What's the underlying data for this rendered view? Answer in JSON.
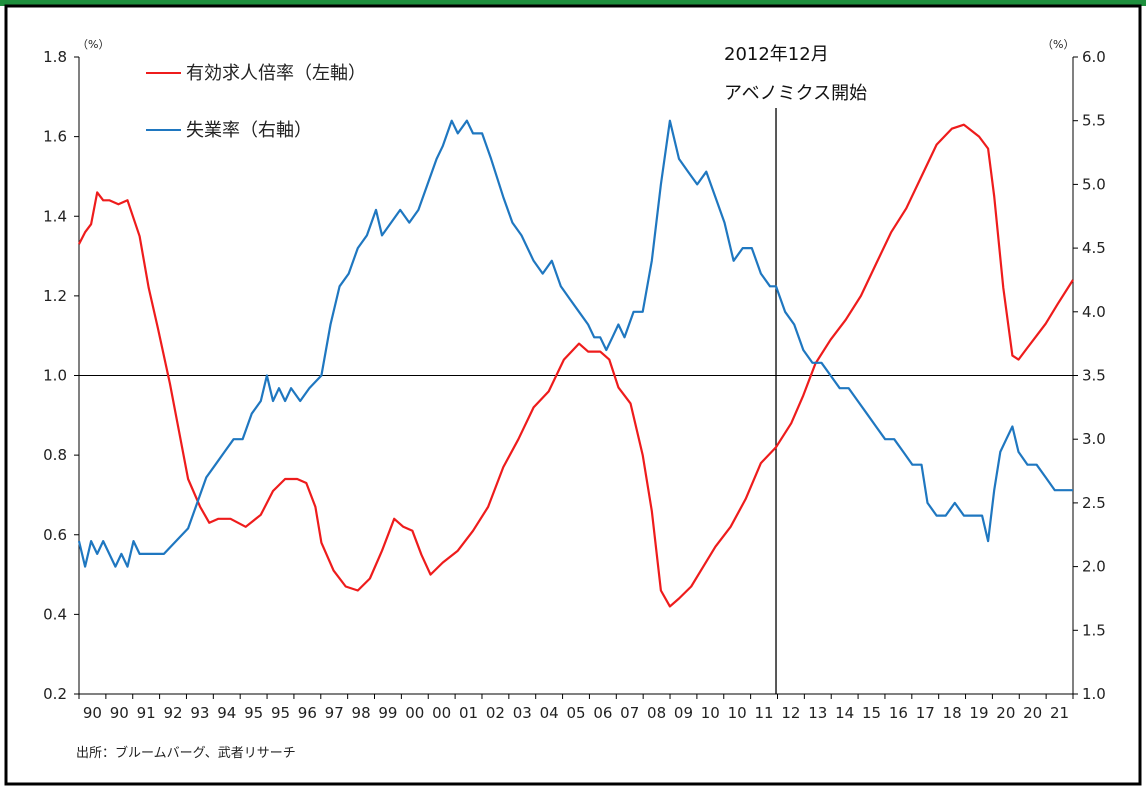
{
  "chart_data": {
    "type": "line",
    "units": {
      "left": "（%）",
      "right": "（%）"
    },
    "left_axis": {
      "range": [
        0.2,
        1.8
      ],
      "ticks": [
        "0.2",
        "0.4",
        "0.6",
        "0.8",
        "1.0",
        "1.2",
        "1.4",
        "1.6",
        "1.8"
      ]
    },
    "right_axis": {
      "range": [
        1.0,
        6.0
      ],
      "ticks": [
        "1.0",
        "1.5",
        "2.0",
        "2.5",
        "3.0",
        "3.5",
        "4.0",
        "4.5",
        "5.0",
        "5.5",
        "6.0"
      ]
    },
    "x_tick_labels": [
      "90",
      "90",
      "91",
      "92",
      "93",
      "94",
      "95",
      "95",
      "96",
      "97",
      "98",
      "99",
      "00",
      "00",
      "01",
      "02",
      "03",
      "04",
      "05",
      "06",
      "07",
      "08",
      "09",
      "10",
      "10",
      "11",
      "12",
      "13",
      "14",
      "15",
      "16",
      "17",
      "18",
      "19",
      "20",
      "20",
      "21"
    ],
    "reference_line_value": 1.0,
    "vline": {
      "label_date": "2012年12月",
      "label_text": "アベノミクス開始"
    },
    "legend": [
      {
        "label": "有効求人倍率（左軸）",
        "color": "#ee1c1c"
      },
      {
        "label": "失業率（右軸）",
        "color": "#1f77c0"
      }
    ],
    "series": [
      {
        "name": "有効求人倍率（左軸）",
        "axis": "left",
        "color": "#ee1c1c",
        "points": [
          [
            1990.0,
            1.33
          ],
          [
            1990.2,
            1.36
          ],
          [
            1990.4,
            1.38
          ],
          [
            1990.6,
            1.46
          ],
          [
            1990.8,
            1.44
          ],
          [
            1991.0,
            1.44
          ],
          [
            1991.3,
            1.43
          ],
          [
            1991.6,
            1.44
          ],
          [
            1992.0,
            1.35
          ],
          [
            1992.3,
            1.22
          ],
          [
            1992.6,
            1.12
          ],
          [
            1993.0,
            0.98
          ],
          [
            1993.3,
            0.86
          ],
          [
            1993.6,
            0.74
          ],
          [
            1994.0,
            0.67
          ],
          [
            1994.3,
            0.63
          ],
          [
            1994.6,
            0.64
          ],
          [
            1995.0,
            0.64
          ],
          [
            1995.5,
            0.62
          ],
          [
            1996.0,
            0.65
          ],
          [
            1996.4,
            0.71
          ],
          [
            1996.8,
            0.74
          ],
          [
            1997.2,
            0.74
          ],
          [
            1997.5,
            0.73
          ],
          [
            1997.8,
            0.67
          ],
          [
            1998.0,
            0.58
          ],
          [
            1998.4,
            0.51
          ],
          [
            1998.8,
            0.47
          ],
          [
            1999.2,
            0.46
          ],
          [
            1999.6,
            0.49
          ],
          [
            2000.0,
            0.56
          ],
          [
            2000.4,
            0.64
          ],
          [
            2000.7,
            0.62
          ],
          [
            2001.0,
            0.61
          ],
          [
            2001.3,
            0.55
          ],
          [
            2001.6,
            0.5
          ],
          [
            2002.0,
            0.53
          ],
          [
            2002.5,
            0.56
          ],
          [
            2003.0,
            0.61
          ],
          [
            2003.5,
            0.67
          ],
          [
            2004.0,
            0.77
          ],
          [
            2004.5,
            0.84
          ],
          [
            2005.0,
            0.92
          ],
          [
            2005.5,
            0.96
          ],
          [
            2006.0,
            1.04
          ],
          [
            2006.5,
            1.08
          ],
          [
            2006.8,
            1.06
          ],
          [
            2007.2,
            1.06
          ],
          [
            2007.5,
            1.04
          ],
          [
            2007.8,
            0.97
          ],
          [
            2008.2,
            0.93
          ],
          [
            2008.6,
            0.8
          ],
          [
            2008.9,
            0.66
          ],
          [
            2009.2,
            0.46
          ],
          [
            2009.5,
            0.42
          ],
          [
            2009.8,
            0.44
          ],
          [
            2010.2,
            0.47
          ],
          [
            2010.6,
            0.52
          ],
          [
            2011.0,
            0.57
          ],
          [
            2011.5,
            0.62
          ],
          [
            2012.0,
            0.69
          ],
          [
            2012.5,
            0.78
          ],
          [
            2013.0,
            0.82
          ],
          [
            2013.5,
            0.88
          ],
          [
            2013.9,
            0.95
          ],
          [
            2014.3,
            1.03
          ],
          [
            2014.8,
            1.09
          ],
          [
            2015.3,
            1.14
          ],
          [
            2015.8,
            1.2
          ],
          [
            2016.3,
            1.28
          ],
          [
            2016.8,
            1.36
          ],
          [
            2017.3,
            1.42
          ],
          [
            2017.8,
            1.5
          ],
          [
            2018.3,
            1.58
          ],
          [
            2018.8,
            1.62
          ],
          [
            2019.2,
            1.63
          ],
          [
            2019.7,
            1.6
          ],
          [
            2020.0,
            1.57
          ],
          [
            2020.2,
            1.45
          ],
          [
            2020.5,
            1.22
          ],
          [
            2020.8,
            1.05
          ],
          [
            2021.0,
            1.04
          ],
          [
            2021.3,
            1.07
          ],
          [
            2021.6,
            1.1
          ],
          [
            2021.9,
            1.13
          ],
          [
            2022.3,
            1.18
          ],
          [
            2022.8,
            1.24
          ]
        ]
      },
      {
        "name": "失業率（右軸）",
        "axis": "right",
        "color": "#1f77c0",
        "points": [
          [
            1990.0,
            2.2
          ],
          [
            1990.2,
            2.0
          ],
          [
            1990.4,
            2.2
          ],
          [
            1990.6,
            2.1
          ],
          [
            1990.8,
            2.2
          ],
          [
            1991.0,
            2.1
          ],
          [
            1991.2,
            2.0
          ],
          [
            1991.4,
            2.1
          ],
          [
            1991.6,
            2.0
          ],
          [
            1991.8,
            2.2
          ],
          [
            1992.0,
            2.1
          ],
          [
            1992.4,
            2.1
          ],
          [
            1992.8,
            2.1
          ],
          [
            1993.2,
            2.2
          ],
          [
            1993.6,
            2.3
          ],
          [
            1993.9,
            2.5
          ],
          [
            1994.2,
            2.7
          ],
          [
            1994.5,
            2.8
          ],
          [
            1994.8,
            2.9
          ],
          [
            1995.1,
            3.0
          ],
          [
            1995.4,
            3.0
          ],
          [
            1995.7,
            3.2
          ],
          [
            1996.0,
            3.3
          ],
          [
            1996.2,
            3.5
          ],
          [
            1996.4,
            3.3
          ],
          [
            1996.6,
            3.4
          ],
          [
            1996.8,
            3.3
          ],
          [
            1997.0,
            3.4
          ],
          [
            1997.3,
            3.3
          ],
          [
            1997.6,
            3.4
          ],
          [
            1998.0,
            3.5
          ],
          [
            1998.3,
            3.9
          ],
          [
            1998.6,
            4.2
          ],
          [
            1998.9,
            4.3
          ],
          [
            1999.2,
            4.5
          ],
          [
            1999.5,
            4.6
          ],
          [
            1999.8,
            4.8
          ],
          [
            2000.0,
            4.6
          ],
          [
            2000.3,
            4.7
          ],
          [
            2000.6,
            4.8
          ],
          [
            2000.9,
            4.7
          ],
          [
            2001.2,
            4.8
          ],
          [
            2001.5,
            5.0
          ],
          [
            2001.8,
            5.2
          ],
          [
            2002.0,
            5.3
          ],
          [
            2002.3,
            5.5
          ],
          [
            2002.5,
            5.4
          ],
          [
            2002.8,
            5.5
          ],
          [
            2003.0,
            5.4
          ],
          [
            2003.3,
            5.4
          ],
          [
            2003.6,
            5.2
          ],
          [
            2004.0,
            4.9
          ],
          [
            2004.3,
            4.7
          ],
          [
            2004.6,
            4.6
          ],
          [
            2005.0,
            4.4
          ],
          [
            2005.3,
            4.3
          ],
          [
            2005.6,
            4.4
          ],
          [
            2005.9,
            4.2
          ],
          [
            2006.2,
            4.1
          ],
          [
            2006.5,
            4.0
          ],
          [
            2006.8,
            3.9
          ],
          [
            2007.0,
            3.8
          ],
          [
            2007.2,
            3.8
          ],
          [
            2007.4,
            3.7
          ],
          [
            2007.6,
            3.8
          ],
          [
            2007.8,
            3.9
          ],
          [
            2008.0,
            3.8
          ],
          [
            2008.3,
            4.0
          ],
          [
            2008.6,
            4.0
          ],
          [
            2008.9,
            4.4
          ],
          [
            2009.2,
            5.0
          ],
          [
            2009.5,
            5.5
          ],
          [
            2009.8,
            5.2
          ],
          [
            2010.1,
            5.1
          ],
          [
            2010.4,
            5.0
          ],
          [
            2010.7,
            5.1
          ],
          [
            2011.0,
            4.9
          ],
          [
            2011.3,
            4.7
          ],
          [
            2011.6,
            4.4
          ],
          [
            2011.9,
            4.5
          ],
          [
            2012.2,
            4.5
          ],
          [
            2012.5,
            4.3
          ],
          [
            2012.8,
            4.2
          ],
          [
            2013.0,
            4.2
          ],
          [
            2013.3,
            4.0
          ],
          [
            2013.6,
            3.9
          ],
          [
            2013.9,
            3.7
          ],
          [
            2014.2,
            3.6
          ],
          [
            2014.5,
            3.6
          ],
          [
            2014.8,
            3.5
          ],
          [
            2015.1,
            3.4
          ],
          [
            2015.4,
            3.4
          ],
          [
            2015.7,
            3.3
          ],
          [
            2016.0,
            3.2
          ],
          [
            2016.3,
            3.1
          ],
          [
            2016.6,
            3.0
          ],
          [
            2016.9,
            3.0
          ],
          [
            2017.2,
            2.9
          ],
          [
            2017.5,
            2.8
          ],
          [
            2017.8,
            2.8
          ],
          [
            2018.0,
            2.5
          ],
          [
            2018.3,
            2.4
          ],
          [
            2018.6,
            2.4
          ],
          [
            2018.9,
            2.5
          ],
          [
            2019.2,
            2.4
          ],
          [
            2019.5,
            2.4
          ],
          [
            2019.8,
            2.4
          ],
          [
            2020.0,
            2.2
          ],
          [
            2020.2,
            2.6
          ],
          [
            2020.4,
            2.9
          ],
          [
            2020.6,
            3.0
          ],
          [
            2020.8,
            3.1
          ],
          [
            2021.0,
            2.9
          ],
          [
            2021.3,
            2.8
          ],
          [
            2021.6,
            2.8
          ],
          [
            2021.9,
            2.7
          ],
          [
            2022.2,
            2.6
          ],
          [
            2022.5,
            2.6
          ],
          [
            2022.8,
            2.6
          ]
        ]
      }
    ],
    "x_range": [
      1990.0,
      2022.8
    ],
    "vline_x": 2013.0,
    "source": "出所：ブルームバーグ、武者リサーチ"
  }
}
